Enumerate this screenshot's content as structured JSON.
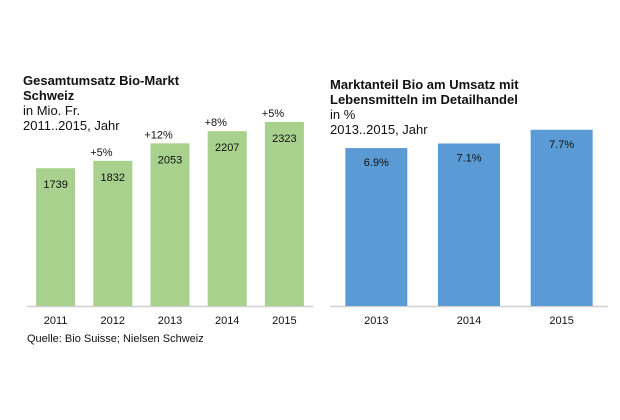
{
  "colors": {
    "left_bar": "#a9d18e",
    "right_bar": "#5b9bd5",
    "axis": "#d0d0d0"
  },
  "source": "Quelle: Bio Suisse; Nielsen Schweiz",
  "chart_data": [
    {
      "type": "bar",
      "title_lines": [
        "Gesamtumsatz Bio-Markt",
        "Schweiz"
      ],
      "subtitle_lines": [
        "in Mio. Fr.",
        "2011..2015, Jahr"
      ],
      "categories": [
        "2011",
        "2012",
        "2013",
        "2014",
        "2015"
      ],
      "values": [
        1739,
        1832,
        2053,
        2207,
        2323
      ],
      "value_labels": [
        "1739",
        "1832",
        "2053",
        "2207",
        "2323"
      ],
      "growth_labels": [
        "",
        "+5%",
        "+12%",
        "+8%",
        "+5%"
      ],
      "ylim": [
        0,
        2600
      ],
      "grid": false
    },
    {
      "type": "bar",
      "title_lines": [
        "Marktanteil Bio am Umsatz mit",
        "Lebensmitteln im Detailhandel"
      ],
      "subtitle_lines": [
        "in %",
        "2013..2015, Jahr"
      ],
      "categories": [
        "2013",
        "2014",
        "2015"
      ],
      "values": [
        6.9,
        7.1,
        7.7
      ],
      "value_labels": [
        "6.9%",
        "7.1%",
        "7.7%"
      ],
      "ylim": [
        0,
        9.0
      ],
      "grid": false
    }
  ]
}
